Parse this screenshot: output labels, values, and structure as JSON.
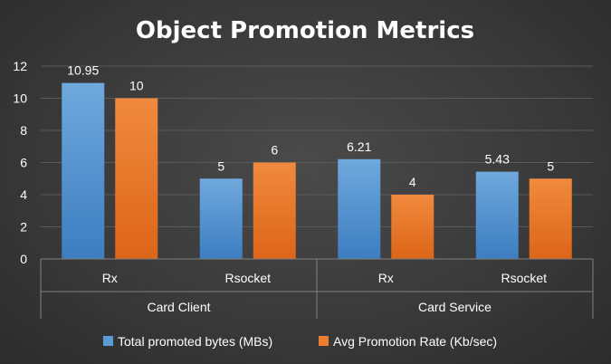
{
  "chart_data": {
    "type": "bar",
    "title": "Object Promotion Metrics",
    "xlabel": "",
    "ylabel": "",
    "ylim": [
      0,
      12
    ],
    "yticks": [
      0,
      2,
      4,
      6,
      8,
      10,
      12
    ],
    "grid": true,
    "legend_position": "bottom",
    "groups": [
      {
        "label": "Card Client",
        "categories": [
          "Rx",
          "Rsocket"
        ]
      },
      {
        "label": "Card Service",
        "categories": [
          "Rx",
          "Rsocket"
        ]
      }
    ],
    "categories": [
      "Rx",
      "Rsocket",
      "Rx",
      "Rsocket"
    ],
    "series": [
      {
        "name": "Total promoted bytes (MBs)",
        "values": [
          10.95,
          5,
          6.21,
          5.43
        ],
        "labels": [
          "10.95",
          "5",
          "6.21",
          "5.43"
        ],
        "color": "#5b9bd5"
      },
      {
        "name": "Avg Promotion Rate (Kb/sec)",
        "values": [
          10,
          6,
          4,
          5
        ],
        "labels": [
          "10",
          "6",
          "4",
          "5"
        ],
        "color": "#ed7d31"
      }
    ]
  },
  "colors": {
    "background": "#3a3a3a",
    "grid": "#5a5a5a",
    "text": "#ffffff",
    "axis": "#808080"
  }
}
